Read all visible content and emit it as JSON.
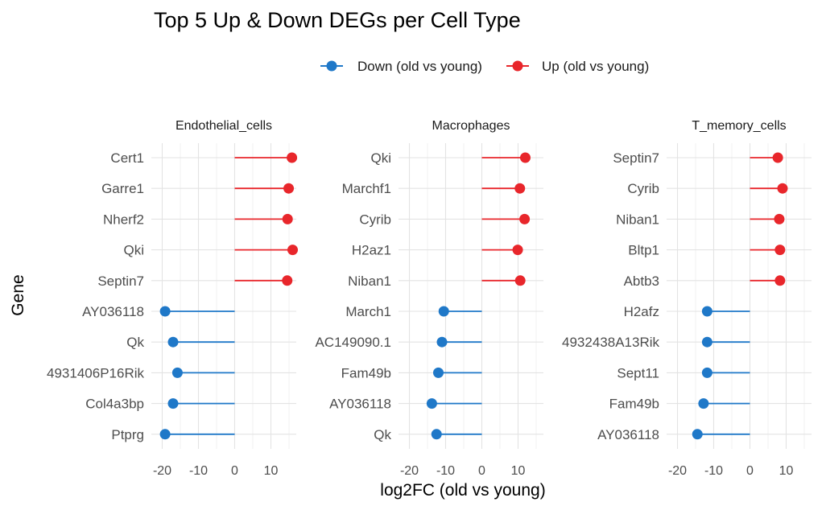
{
  "chart_data": {
    "type": "lollipop",
    "title": "Top 5 Up & Down DEGs per Cell Type",
    "xlabel": "log2FC (old vs young)",
    "ylabel": "Gene",
    "xlim": [
      -23,
      17
    ],
    "xticks": [
      -20,
      -10,
      0,
      10
    ],
    "xtick_labels": [
      "-20",
      "-10",
      "0",
      "10"
    ],
    "grid": true,
    "legend_position": "top",
    "legend": [
      {
        "key": "down",
        "label": "Down (old vs young)",
        "color": "#1f78c8"
      },
      {
        "key": "up",
        "label": "Up (old vs young)",
        "color": "#e8262b"
      }
    ],
    "panels": [
      {
        "name": "Endothelial_cells",
        "genes": [
          {
            "gene": "Cert1",
            "value": 15.8,
            "direction": "up"
          },
          {
            "gene": "Garre1",
            "value": 14.9,
            "direction": "up"
          },
          {
            "gene": "Nherf2",
            "value": 14.6,
            "direction": "up"
          },
          {
            "gene": "Qki",
            "value": 16.0,
            "direction": "up"
          },
          {
            "gene": "Septin7",
            "value": 14.5,
            "direction": "up"
          },
          {
            "gene": "AY036118",
            "value": -19.2,
            "direction": "down"
          },
          {
            "gene": "Qk",
            "value": -17.0,
            "direction": "down"
          },
          {
            "gene": "4931406P16Rik",
            "value": -15.8,
            "direction": "down"
          },
          {
            "gene": "Col4a3bp",
            "value": -17.0,
            "direction": "down"
          },
          {
            "gene": "Ptprg",
            "value": -19.2,
            "direction": "down"
          }
        ]
      },
      {
        "name": "Macrophages",
        "genes": [
          {
            "gene": "Qki",
            "value": 12.0,
            "direction": "up"
          },
          {
            "gene": "Marchf1",
            "value": 10.5,
            "direction": "up"
          },
          {
            "gene": "Cyrib",
            "value": 11.8,
            "direction": "up"
          },
          {
            "gene": "H2az1",
            "value": 9.9,
            "direction": "up"
          },
          {
            "gene": "Niban1",
            "value": 10.6,
            "direction": "up"
          },
          {
            "gene": "March1",
            "value": -10.5,
            "direction": "down"
          },
          {
            "gene": "AC149090.1",
            "value": -11.0,
            "direction": "down"
          },
          {
            "gene": "Fam49b",
            "value": -12.0,
            "direction": "down"
          },
          {
            "gene": "AY036118",
            "value": -13.8,
            "direction": "down"
          },
          {
            "gene": "Qk",
            "value": -12.5,
            "direction": "down"
          }
        ]
      },
      {
        "name": "T_memory_cells",
        "genes": [
          {
            "gene": "Septin7",
            "value": 7.7,
            "direction": "up"
          },
          {
            "gene": "Cyrib",
            "value": 9.0,
            "direction": "up"
          },
          {
            "gene": "Niban1",
            "value": 8.1,
            "direction": "up"
          },
          {
            "gene": "Bltp1",
            "value": 8.3,
            "direction": "up"
          },
          {
            "gene": "Abtb3",
            "value": 8.3,
            "direction": "up"
          },
          {
            "gene": "H2afz",
            "value": -11.8,
            "direction": "down"
          },
          {
            "gene": "4932438A13Rik",
            "value": -11.8,
            "direction": "down"
          },
          {
            "gene": "Sept11",
            "value": -11.8,
            "direction": "down"
          },
          {
            "gene": "Fam49b",
            "value": -12.8,
            "direction": "down"
          },
          {
            "gene": "AY036118",
            "value": -14.5,
            "direction": "down"
          }
        ]
      }
    ]
  }
}
